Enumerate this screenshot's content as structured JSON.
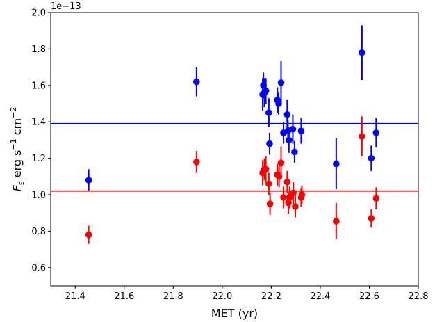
{
  "chart_data": {
    "type": "scatter",
    "xlabel": "MET (yr)",
    "ylabel": "F_s erg s^-1 cm^-2",
    "ylabel_parts": {
      "main": "F",
      "sub": "s",
      "u1": " erg s",
      "e1": "−1",
      "u2": " cm",
      "e2": "−2"
    },
    "offset_text": "1e−13",
    "xlim": [
      21.3,
      22.8
    ],
    "ylim": [
      0.5,
      2.0
    ],
    "x_ticks": [
      21.4,
      21.6,
      21.8,
      22.0,
      22.2,
      22.4,
      22.6,
      22.8
    ],
    "x_tick_labels": [
      "21.4",
      "21.6",
      "21.8",
      "22.0",
      "22.2",
      "22.4",
      "22.6",
      "22.8"
    ],
    "y_ticks": [
      0.6,
      0.8,
      1.0,
      1.2,
      1.4,
      1.6,
      1.8,
      2.0
    ],
    "y_tick_labels": [
      "0.6",
      "0.8",
      "1.0",
      "1.2",
      "1.4",
      "1.6",
      "1.8",
      "2.0"
    ],
    "grid": false,
    "series": [
      {
        "color": "#0000ff",
        "hline": 1.39,
        "points": [
          {
            "x": 21.455,
            "y": 1.08,
            "err": 0.06
          },
          {
            "x": 21.895,
            "y": 1.62,
            "err": 0.08
          },
          {
            "x": 22.165,
            "y": 1.55,
            "err": 0.09
          },
          {
            "x": 22.168,
            "y": 1.6,
            "err": 0.07
          },
          {
            "x": 22.172,
            "y": 1.56,
            "err": 0.08
          },
          {
            "x": 22.178,
            "y": 1.57,
            "err": 0.07
          },
          {
            "x": 22.19,
            "y": 1.45,
            "err": 0.08
          },
          {
            "x": 22.193,
            "y": 1.28,
            "err": 0.06
          },
          {
            "x": 22.225,
            "y": 1.52,
            "err": 0.07
          },
          {
            "x": 22.23,
            "y": 1.5,
            "err": 0.06
          },
          {
            "x": 22.24,
            "y": 1.615,
            "err": 0.12
          },
          {
            "x": 22.25,
            "y": 1.34,
            "err": 0.06
          },
          {
            "x": 22.265,
            "y": 1.44,
            "err": 0.08
          },
          {
            "x": 22.268,
            "y": 1.35,
            "err": 0.06
          },
          {
            "x": 22.272,
            "y": 1.3,
            "err": 0.07
          },
          {
            "x": 22.288,
            "y": 1.36,
            "err": 0.08
          },
          {
            "x": 22.295,
            "y": 1.235,
            "err": 0.06
          },
          {
            "x": 22.322,
            "y": 1.35,
            "err": 0.07
          },
          {
            "x": 22.465,
            "y": 1.17,
            "err": 0.14
          },
          {
            "x": 22.57,
            "y": 1.78,
            "err": 0.15
          },
          {
            "x": 22.608,
            "y": 1.2,
            "err": 0.07
          },
          {
            "x": 22.628,
            "y": 1.34,
            "err": 0.08
          }
        ]
      },
      {
        "color": "#ff0000",
        "hline": 1.02,
        "points": [
          {
            "x": 21.455,
            "y": 0.78,
            "err": 0.05
          },
          {
            "x": 21.895,
            "y": 1.18,
            "err": 0.06
          },
          {
            "x": 22.165,
            "y": 1.12,
            "err": 0.07
          },
          {
            "x": 22.172,
            "y": 1.14,
            "err": 0.06
          },
          {
            "x": 22.178,
            "y": 1.14,
            "err": 0.07
          },
          {
            "x": 22.19,
            "y": 1.06,
            "err": 0.06
          },
          {
            "x": 22.195,
            "y": 0.95,
            "err": 0.06
          },
          {
            "x": 22.225,
            "y": 1.11,
            "err": 0.06
          },
          {
            "x": 22.232,
            "y": 1.1,
            "err": 0.06
          },
          {
            "x": 22.24,
            "y": 1.175,
            "err": 0.09
          },
          {
            "x": 22.25,
            "y": 0.985,
            "err": 0.06
          },
          {
            "x": 22.265,
            "y": 1.07,
            "err": 0.06
          },
          {
            "x": 22.27,
            "y": 0.955,
            "err": 0.06
          },
          {
            "x": 22.275,
            "y": 0.985,
            "err": 0.06
          },
          {
            "x": 22.29,
            "y": 1.01,
            "err": 0.06
          },
          {
            "x": 22.298,
            "y": 0.935,
            "err": 0.06
          },
          {
            "x": 22.322,
            "y": 0.985,
            "err": 0.05
          },
          {
            "x": 22.325,
            "y": 1.0,
            "err": 0.05
          },
          {
            "x": 22.465,
            "y": 0.855,
            "err": 0.1
          },
          {
            "x": 22.57,
            "y": 1.32,
            "err": 0.11
          },
          {
            "x": 22.608,
            "y": 0.87,
            "err": 0.05
          },
          {
            "x": 22.628,
            "y": 0.98,
            "err": 0.06
          }
        ]
      }
    ]
  }
}
